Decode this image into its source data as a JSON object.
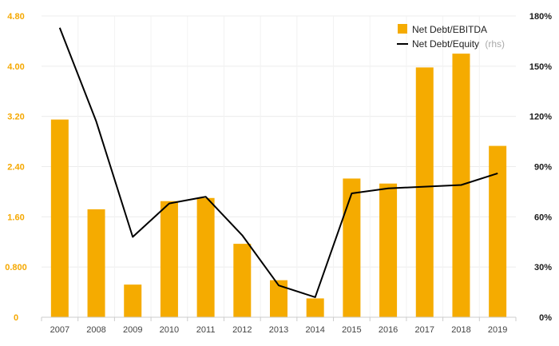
{
  "chart_data": {
    "type": "bar",
    "categories": [
      "2007",
      "2008",
      "2009",
      "2010",
      "2011",
      "2012",
      "2013",
      "2014",
      "2015",
      "2016",
      "2017",
      "2018",
      "2019"
    ],
    "series": [
      {
        "name": "Net Debt/EBITDA",
        "type": "bar",
        "axis": "left",
        "color": "#f5ab00",
        "values": [
          3.15,
          1.72,
          0.52,
          1.85,
          1.9,
          1.17,
          0.59,
          0.3,
          2.21,
          2.13,
          3.98,
          4.2,
          2.73
        ]
      },
      {
        "name": "Net Debt/Equity",
        "name_suffix": "(rhs)",
        "type": "line",
        "axis": "right",
        "color": "#000000",
        "values": [
          173,
          117,
          48,
          68,
          72,
          49,
          19,
          12,
          74,
          77,
          78,
          79,
          86
        ]
      }
    ],
    "y_left": {
      "ylim": [
        0,
        4.8
      ],
      "ticks": [
        0,
        0.8,
        1.6,
        2.4,
        3.2,
        4.0,
        4.8
      ],
      "tick_labels": [
        "0",
        "0.800",
        "1.60",
        "2.40",
        "3.20",
        "4.00",
        "4.80"
      ]
    },
    "y_right": {
      "ylim": [
        0,
        180
      ],
      "ticks": [
        0,
        30,
        60,
        90,
        120,
        150,
        180
      ],
      "tick_labels": [
        "0%",
        "30%",
        "60%",
        "90%",
        "120%",
        "150%",
        "180%"
      ]
    },
    "grid": true,
    "legend": "top-right"
  }
}
